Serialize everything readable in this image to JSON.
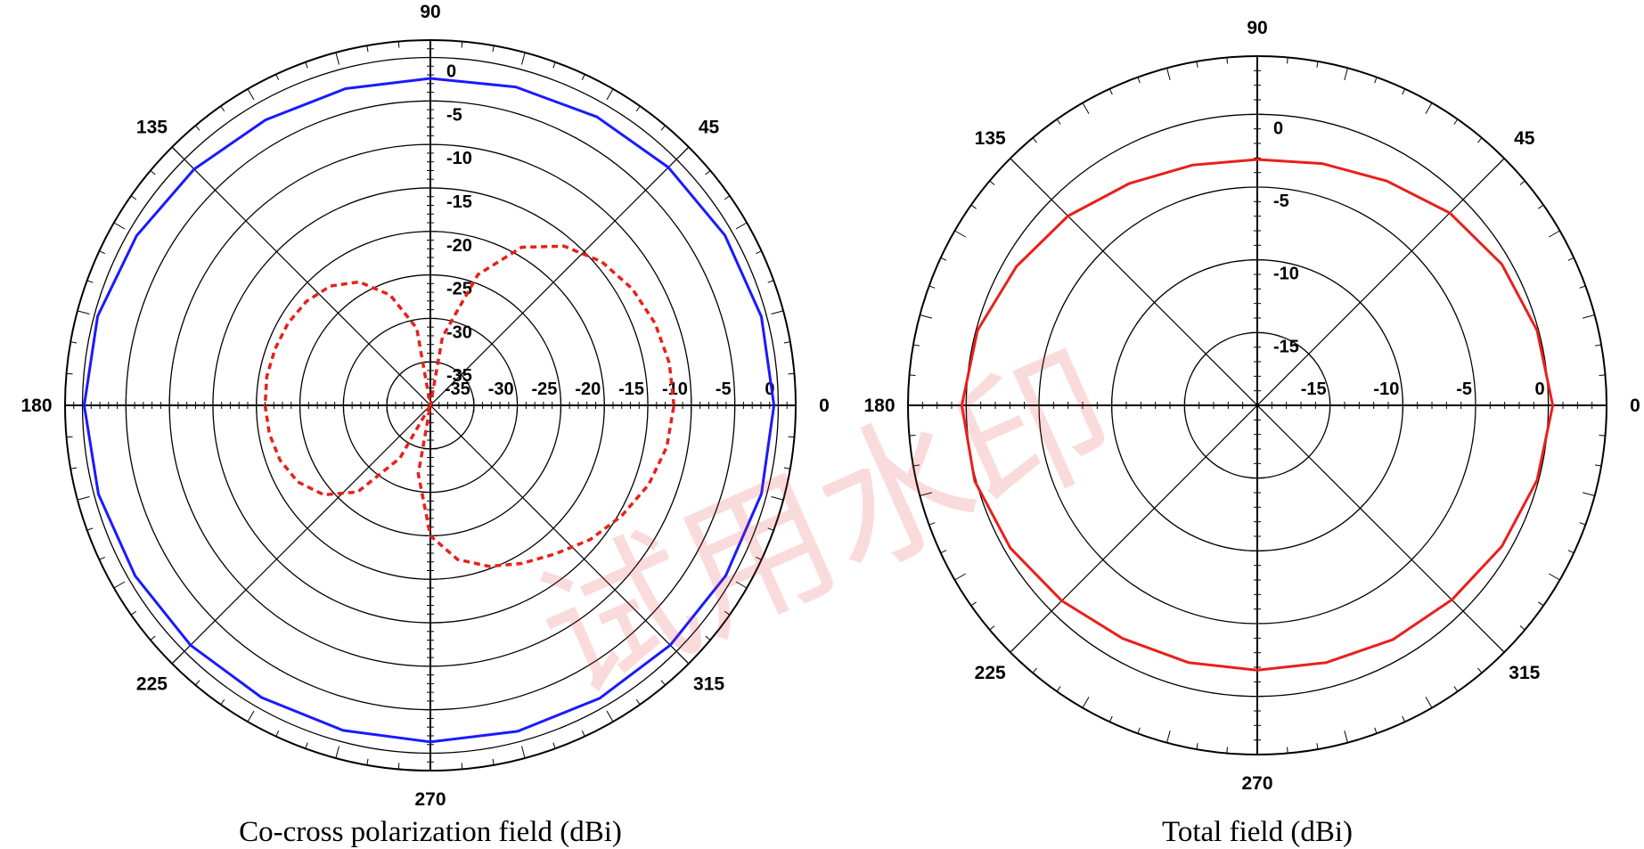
{
  "chart_data": [
    {
      "type": "polar",
      "caption": "Co-cross polarization field (dBi)",
      "angle_labels": [
        "0",
        "45",
        "90",
        "135",
        "180",
        "225",
        "270",
        "315"
      ],
      "radial_labels": [
        "-35",
        "-30",
        "-25",
        "-20",
        "-15",
        "-10",
        "-5",
        "0"
      ],
      "radial_range": [
        -40,
        2
      ],
      "ring_levels": [
        -35,
        -30,
        -25,
        -20,
        -15,
        -10,
        -5,
        0
      ],
      "series": [
        {
          "color": "#1a1aff",
          "style": "solid",
          "angles": [
            0,
            15,
            30,
            45,
            60,
            75,
            90,
            105,
            120,
            135,
            150,
            165,
            180,
            195,
            210,
            225,
            240,
            255,
            270,
            285,
            300,
            315,
            330,
            345,
            360
          ],
          "values": [
            -0.5,
            -0.6,
            -0.9,
            -1.3,
            -1.7,
            -2.1,
            -2.4,
            -2.3,
            -2.1,
            -1.6,
            -1.0,
            -0.4,
            -0.2,
            -0.5,
            -0.8,
            -1.0,
            -1.2,
            -1.3,
            -1.3,
            -1.2,
            -1.1,
            -1.0,
            -0.8,
            -0.6,
            -0.5
          ]
        },
        {
          "color": "#e8201a",
          "style": "dashed",
          "angles": [
            0,
            10,
            20,
            30,
            40,
            50,
            60,
            70,
            80,
            90,
            100,
            110,
            120,
            130,
            140,
            150,
            160,
            170,
            180,
            190,
            200,
            210,
            220,
            230,
            240,
            250,
            260,
            270,
            280,
            290,
            300,
            310,
            320,
            330,
            340,
            350,
            360
          ],
          "values": [
            -12,
            -12.1,
            -12.5,
            -13.2,
            -14.3,
            -16.1,
            -19,
            -24,
            -32,
            -40,
            -31,
            -26.5,
            -23.6,
            -22.1,
            -21.4,
            -21.1,
            -21.0,
            -20.9,
            -21.0,
            -21.2,
            -21.6,
            -22.4,
            -24,
            -27,
            -33,
            -40,
            -32,
            -25,
            -22,
            -20.3,
            -19.0,
            -17.7,
            -16.0,
            -14.6,
            -13.3,
            -12.4,
            -12
          ]
        }
      ]
    },
    {
      "type": "polar",
      "caption": "Total field (dBi)",
      "angle_labels": [
        "0",
        "45",
        "90",
        "135",
        "180",
        "225",
        "270",
        "315"
      ],
      "radial_labels": [
        "-15",
        "-10",
        "-5",
        "0"
      ],
      "radial_range": [
        -20,
        4
      ],
      "ring_levels": [
        -15,
        -10,
        -5,
        0
      ],
      "series": [
        {
          "color": "#e8201a",
          "style": "solid",
          "angles": [
            0,
            15,
            30,
            45,
            60,
            75,
            90,
            105,
            120,
            135,
            150,
            165,
            180,
            195,
            210,
            225,
            240,
            255,
            270,
            285,
            300,
            315,
            330,
            345,
            360
          ],
          "values": [
            0.3,
            -0.1,
            -0.6,
            -1.3,
            -2.2,
            -2.8,
            -3.1,
            -2.9,
            -2.4,
            -1.6,
            -0.9,
            -0.1,
            0.3,
            0.1,
            -0.4,
            -1.0,
            -1.5,
            -1.7,
            -1.8,
            -1.7,
            -1.4,
            -1.1,
            -0.6,
            -0.1,
            0.3
          ]
        }
      ]
    }
  ],
  "watermark": "试用水印"
}
